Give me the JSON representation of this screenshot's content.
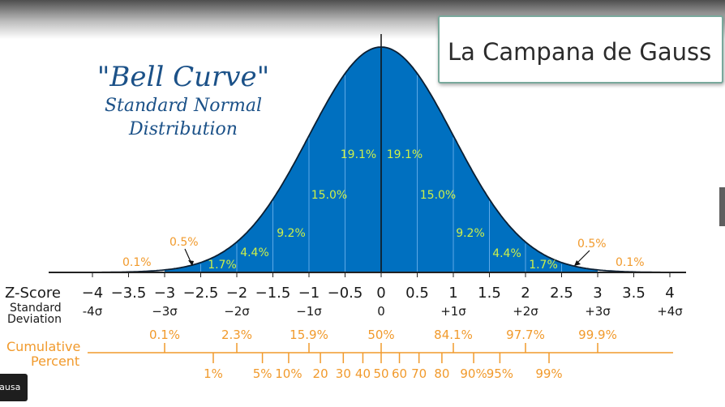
{
  "heading": {
    "title": "\"Bell Curve\"",
    "subtitle_1": "Standard Normal",
    "subtitle_2": "Distribution"
  },
  "title_box": "La Campana de Gauss",
  "overlay": {
    "pause_label": "Pausa"
  },
  "colors": {
    "fill": "#0070c0",
    "outline": "#0b1f33",
    "heading": "#1b5188",
    "band_labels": "#cdf04a",
    "orange": "#f19a2c",
    "axis_text": "#1a1a1a"
  },
  "bands": [
    {
      "from": -4,
      "to": -3,
      "label": ""
    },
    {
      "from": -3,
      "to": -2.5,
      "label": ""
    },
    {
      "from": -2.5,
      "to": -2,
      "label": "1.7%"
    },
    {
      "from": -2,
      "to": -1.5,
      "label": "4.4%"
    },
    {
      "from": -1.5,
      "to": -1,
      "label": "9.2%"
    },
    {
      "from": -1,
      "to": -0.5,
      "label": "15.0%"
    },
    {
      "from": -0.5,
      "to": 0,
      "label": "19.1%"
    },
    {
      "from": 0,
      "to": 0.5,
      "label": "19.1%"
    },
    {
      "from": 0.5,
      "to": 1,
      "label": "15.0%"
    },
    {
      "from": 1,
      "to": 1.5,
      "label": "9.2%"
    },
    {
      "from": 1.5,
      "to": 2,
      "label": "4.4%"
    },
    {
      "from": 2,
      "to": 2.5,
      "label": "1.7%"
    },
    {
      "from": 2.5,
      "to": 3,
      "label": ""
    },
    {
      "from": 3,
      "to": 4,
      "label": ""
    }
  ],
  "tail_callouts": [
    {
      "label": "0.5%",
      "z": -2.75
    },
    {
      "label": "0.5%",
      "z": 2.75
    }
  ],
  "extreme_tails": [
    {
      "label": "0.1%",
      "side": "left"
    },
    {
      "label": "0.1%",
      "side": "right"
    }
  ],
  "zscore": {
    "label": "Z-Score",
    "ticks": [
      {
        "z": -4,
        "label": "−4"
      },
      {
        "z": -3.5,
        "label": "−3.5"
      },
      {
        "z": -3,
        "label": "−3"
      },
      {
        "z": -2.5,
        "label": "−2.5"
      },
      {
        "z": -2,
        "label": "−2"
      },
      {
        "z": -1.5,
        "label": "−1.5"
      },
      {
        "z": -1,
        "label": "−1"
      },
      {
        "z": -0.5,
        "label": "−0.5"
      },
      {
        "z": 0,
        "label": "0"
      },
      {
        "z": 0.5,
        "label": "0.5"
      },
      {
        "z": 1,
        "label": "1"
      },
      {
        "z": 1.5,
        "label": "1.5"
      },
      {
        "z": 2,
        "label": "2"
      },
      {
        "z": 2.5,
        "label": "2.5"
      },
      {
        "z": 3,
        "label": "3"
      },
      {
        "z": 3.5,
        "label": "3.5"
      },
      {
        "z": 4,
        "label": "4"
      }
    ]
  },
  "std_dev": {
    "label_1": "Standard",
    "label_2": "Deviation",
    "ticks": [
      {
        "z": -4,
        "label": "-4σ"
      },
      {
        "z": -3,
        "label": "−3σ"
      },
      {
        "z": -2,
        "label": "−2σ"
      },
      {
        "z": -1,
        "label": "−1σ"
      },
      {
        "z": 0,
        "label": "0"
      },
      {
        "z": 1,
        "label": "+1σ"
      },
      {
        "z": 2,
        "label": "+2σ"
      },
      {
        "z": 3,
        "label": "+3σ"
      },
      {
        "z": 4,
        "label": "+4σ"
      }
    ]
  },
  "cumulative": {
    "label_1": "Cumulative",
    "label_2": "Percent",
    "upper": [
      {
        "z": -3,
        "label": "0.1%"
      },
      {
        "z": -2,
        "label": "2.3%"
      },
      {
        "z": -1,
        "label": "15.9%"
      },
      {
        "z": 0,
        "label": "50%"
      },
      {
        "z": 1,
        "label": "84.1%"
      },
      {
        "z": 2,
        "label": "97.7%"
      },
      {
        "z": 3,
        "label": "99.9%"
      }
    ],
    "lower": [
      {
        "z": -2.326,
        "label": "1%"
      },
      {
        "z": -1.645,
        "label": "5%"
      },
      {
        "z": -1.2816,
        "label": "10%"
      },
      {
        "z": -0.8416,
        "label": "20"
      },
      {
        "z": -0.5244,
        "label": "30"
      },
      {
        "z": -0.2533,
        "label": "40"
      },
      {
        "z": 0,
        "label": "50"
      },
      {
        "z": 0.2533,
        "label": "60"
      },
      {
        "z": 0.5244,
        "label": "70"
      },
      {
        "z": 0.8416,
        "label": "80"
      },
      {
        "z": 1.2816,
        "label": "90%"
      },
      {
        "z": 1.645,
        "label": "95%"
      },
      {
        "z": 2.326,
        "label": "99%"
      }
    ]
  }
}
